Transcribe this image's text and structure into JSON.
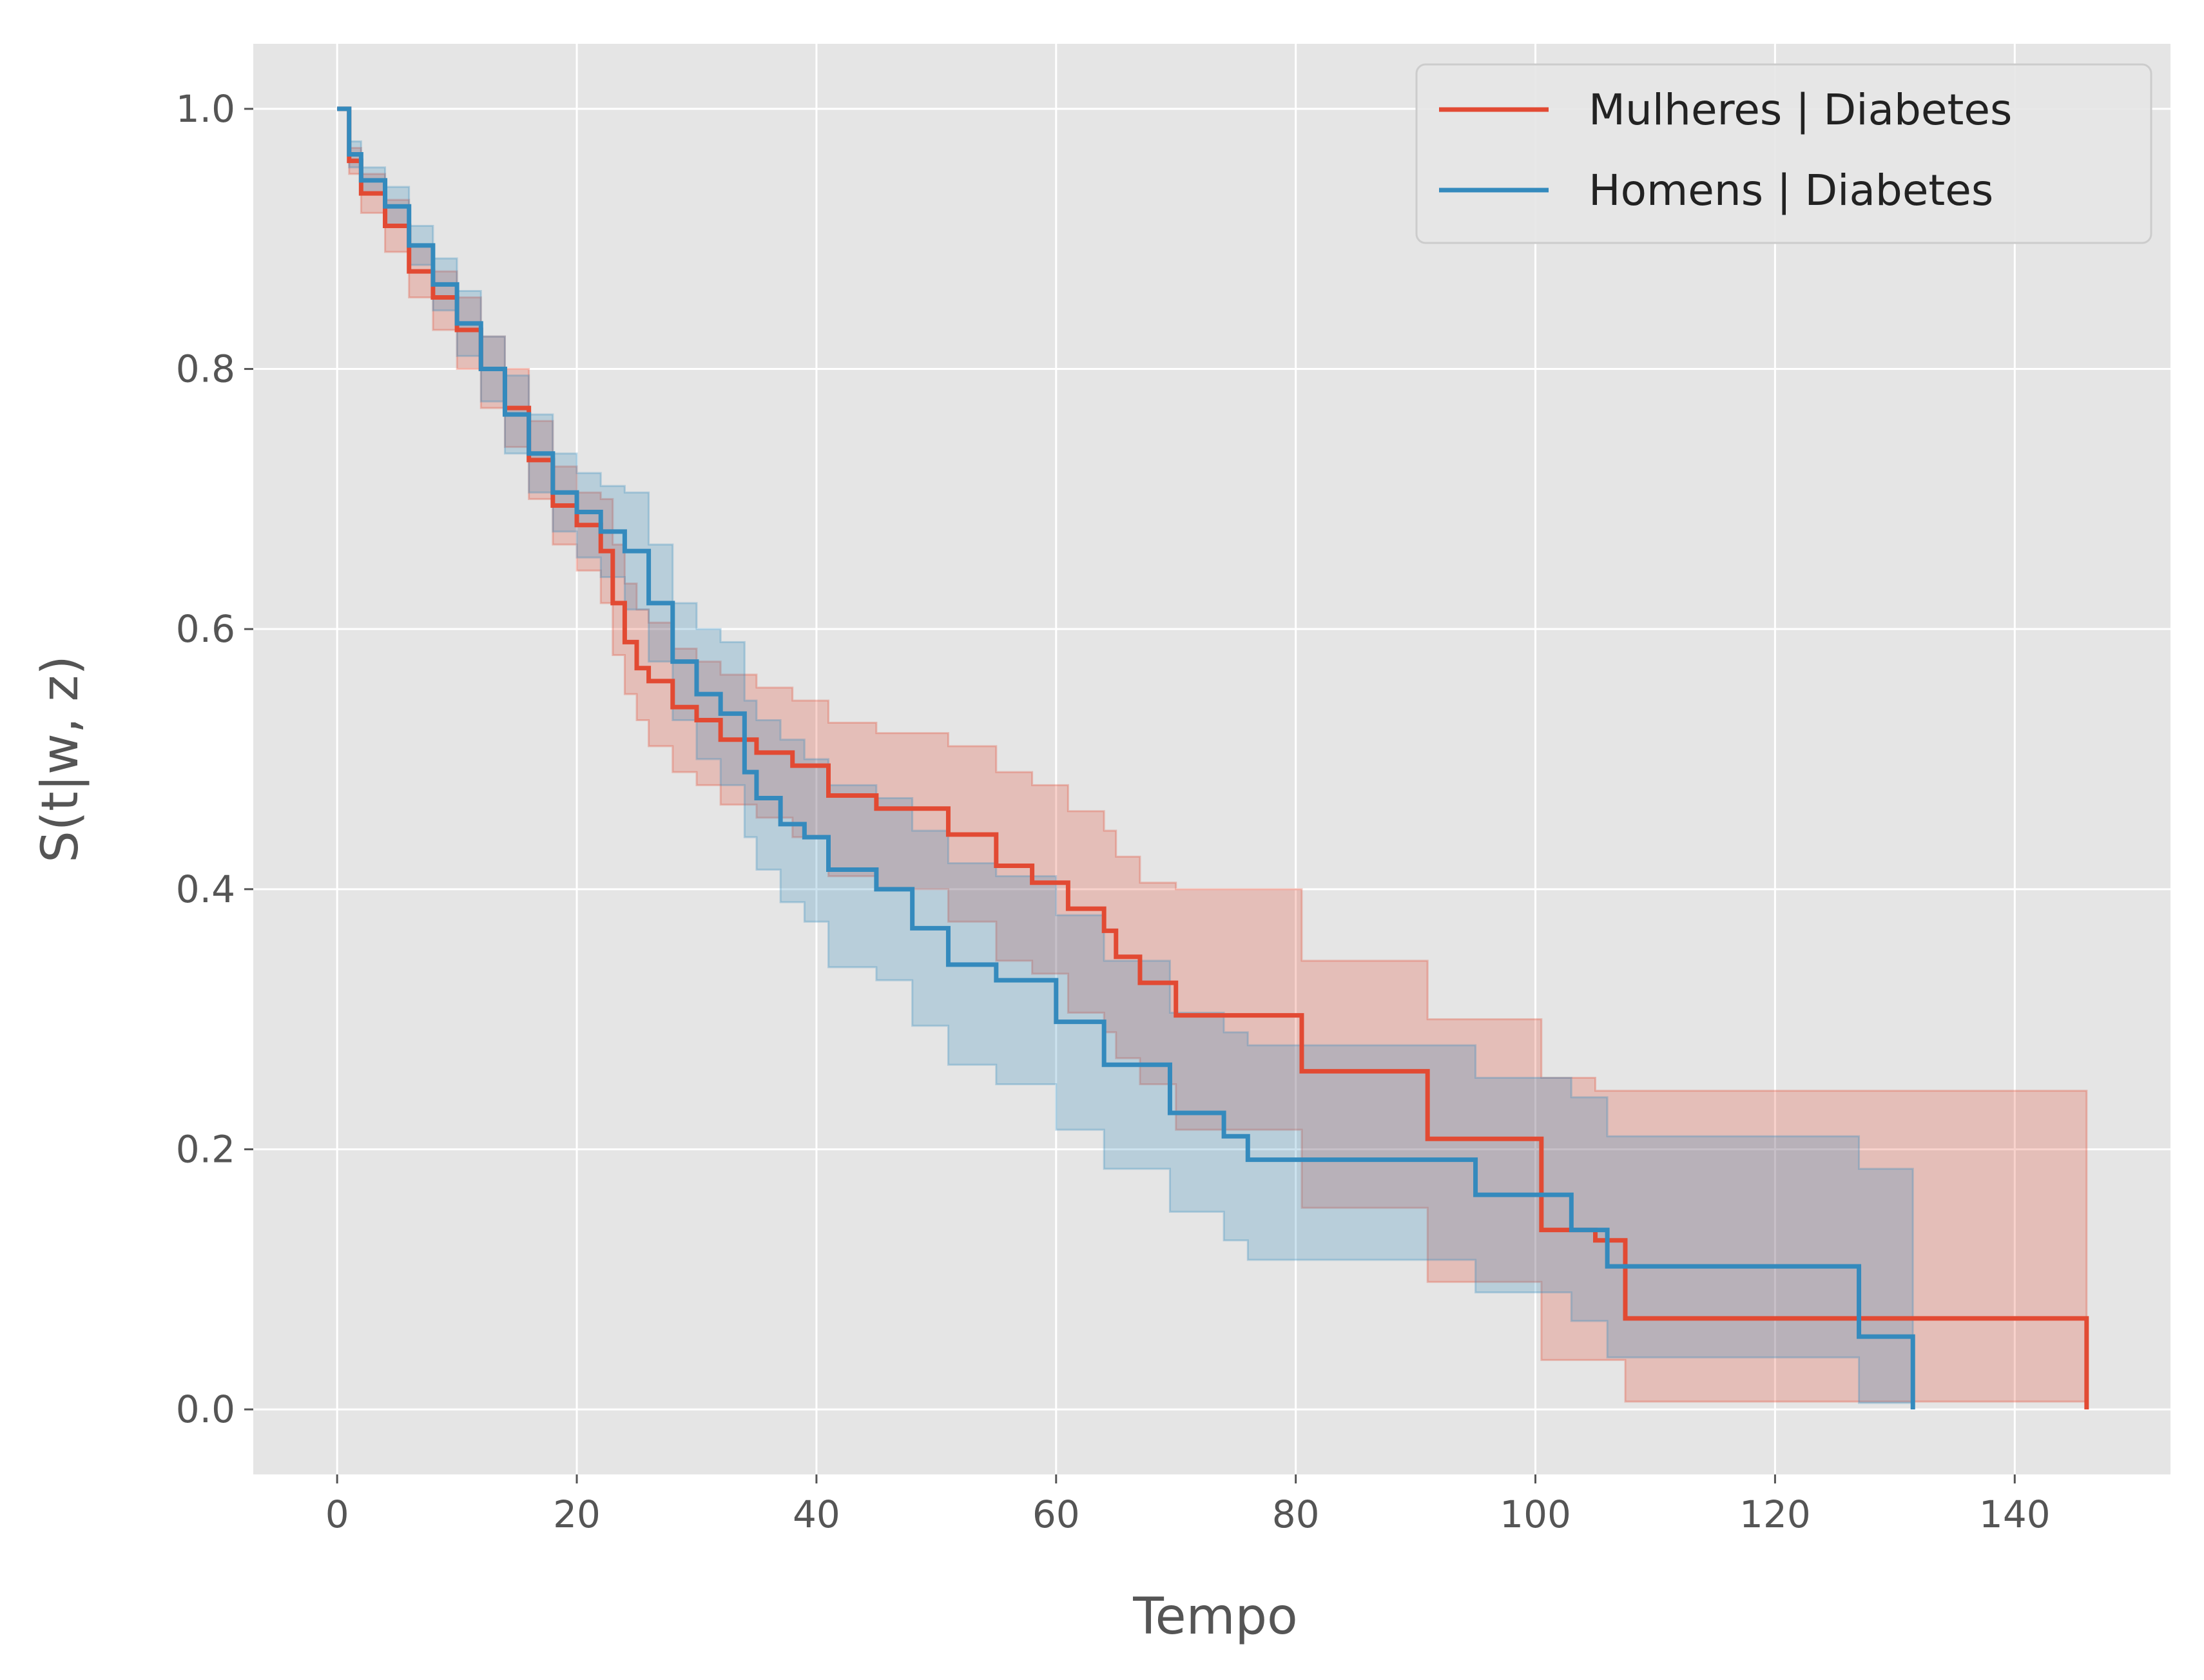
{
  "chart_data": {
    "type": "line",
    "title": "",
    "xlabel": "Tempo",
    "ylabel": "S(t|w, z)",
    "xlim": [
      -7,
      153
    ],
    "ylim": [
      -0.05,
      1.05
    ],
    "x_ticks": [
      0,
      20,
      40,
      60,
      80,
      100,
      120,
      140
    ],
    "x_tick_labels": [
      "0",
      "20",
      "40",
      "60",
      "80",
      "100",
      "120",
      "140"
    ],
    "y_ticks": [
      0.0,
      0.2,
      0.4,
      0.6,
      0.8,
      1.0
    ],
    "y_tick_labels": [
      "0.0",
      "0.2",
      "0.4",
      "0.6",
      "0.8",
      "1.0"
    ],
    "grid": true,
    "legend_position": "top-right",
    "series": [
      {
        "name": "Mulheres | Diabetes",
        "color": "#E24A33",
        "step": "post",
        "x": [
          0,
          1,
          2,
          4,
          6,
          8,
          10,
          12,
          14,
          16,
          18,
          20,
          22,
          23,
          24,
          25,
          26,
          28,
          30,
          32,
          35,
          38,
          41,
          45,
          51,
          55,
          58,
          61,
          64,
          65,
          67,
          70,
          80.5,
          91,
          100.5,
          105,
          107.5,
          146,
          146
        ],
        "y": [
          1.0,
          0.96,
          0.935,
          0.91,
          0.875,
          0.855,
          0.83,
          0.8,
          0.77,
          0.73,
          0.695,
          0.68,
          0.66,
          0.62,
          0.59,
          0.57,
          0.56,
          0.54,
          0.53,
          0.515,
          0.505,
          0.495,
          0.472,
          0.462,
          0.442,
          0.418,
          0.405,
          0.385,
          0.368,
          0.348,
          0.328,
          0.303,
          0.26,
          0.208,
          0.138,
          0.13,
          0.07,
          0.07,
          0.0
        ],
        "lower": [
          1.0,
          0.95,
          0.92,
          0.89,
          0.855,
          0.83,
          0.8,
          0.77,
          0.74,
          0.7,
          0.665,
          0.645,
          0.62,
          0.58,
          0.55,
          0.53,
          0.51,
          0.49,
          0.48,
          0.465,
          0.455,
          0.44,
          0.41,
          0.4,
          0.375,
          0.345,
          0.335,
          0.305,
          0.29,
          0.27,
          0.25,
          0.215,
          0.155,
          0.098,
          0.038,
          0.038,
          0.006,
          0.006,
          0.006
        ],
        "upper": [
          1.0,
          0.97,
          0.95,
          0.93,
          0.895,
          0.875,
          0.855,
          0.825,
          0.8,
          0.76,
          0.725,
          0.705,
          0.7,
          0.665,
          0.635,
          0.615,
          0.605,
          0.585,
          0.575,
          0.565,
          0.555,
          0.545,
          0.528,
          0.52,
          0.51,
          0.49,
          0.48,
          0.46,
          0.445,
          0.425,
          0.405,
          0.4,
          0.345,
          0.3,
          0.255,
          0.245,
          0.245,
          0.245,
          0.245
        ]
      },
      {
        "name": "Homens | Diabetes",
        "color": "#348ABD",
        "step": "post",
        "x": [
          0,
          1,
          2,
          4,
          6,
          8,
          10,
          12,
          14,
          16,
          18,
          20,
          22,
          24,
          26,
          28,
          30,
          32,
          34,
          35,
          37,
          39,
          41,
          45,
          48,
          51,
          55,
          60,
          64,
          69.5,
          74,
          76,
          95,
          103,
          106,
          127,
          131.5,
          131.5
        ],
        "y": [
          1.0,
          0.965,
          0.945,
          0.925,
          0.895,
          0.865,
          0.835,
          0.8,
          0.765,
          0.735,
          0.705,
          0.69,
          0.675,
          0.66,
          0.62,
          0.575,
          0.55,
          0.535,
          0.49,
          0.47,
          0.45,
          0.44,
          0.415,
          0.4,
          0.37,
          0.342,
          0.33,
          0.298,
          0.265,
          0.228,
          0.21,
          0.192,
          0.165,
          0.138,
          0.11,
          0.056,
          0.0,
          0.0
        ],
        "lower": [
          1.0,
          0.955,
          0.935,
          0.91,
          0.88,
          0.845,
          0.81,
          0.775,
          0.735,
          0.705,
          0.675,
          0.655,
          0.64,
          0.615,
          0.575,
          0.53,
          0.5,
          0.48,
          0.44,
          0.415,
          0.39,
          0.375,
          0.34,
          0.33,
          0.295,
          0.265,
          0.25,
          0.215,
          0.185,
          0.152,
          0.13,
          0.115,
          0.09,
          0.068,
          0.04,
          0.005,
          0.005,
          0.005
        ],
        "upper": [
          1.0,
          0.975,
          0.955,
          0.94,
          0.91,
          0.885,
          0.86,
          0.825,
          0.795,
          0.765,
          0.735,
          0.72,
          0.71,
          0.705,
          0.665,
          0.62,
          0.6,
          0.59,
          0.545,
          0.53,
          0.515,
          0.5,
          0.48,
          0.47,
          0.445,
          0.42,
          0.41,
          0.38,
          0.345,
          0.305,
          0.29,
          0.28,
          0.255,
          0.24,
          0.21,
          0.185,
          0.185,
          0.185
        ]
      }
    ]
  }
}
